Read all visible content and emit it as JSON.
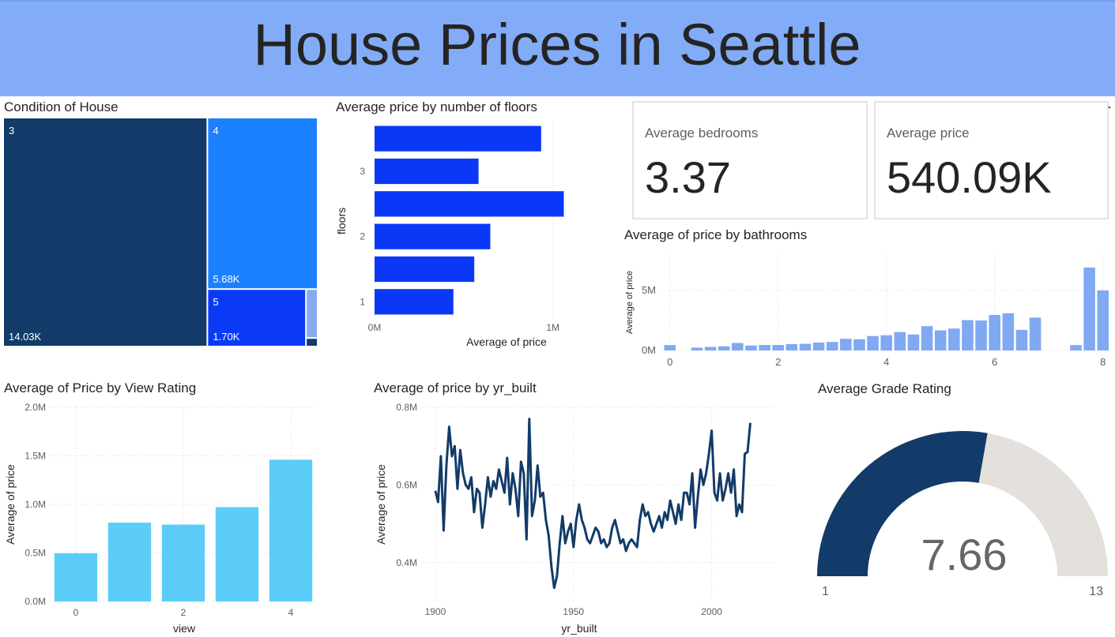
{
  "header": {
    "title": "House Prices in Seattle"
  },
  "cards": [
    {
      "label": "Average bedrooms",
      "value": "3.37"
    },
    {
      "label": "Average price",
      "value": "540.09K"
    }
  ],
  "chart_data": [
    {
      "type": "treemap",
      "title": "Condition of House",
      "categories": [
        "3",
        "4",
        "5",
        null,
        null
      ],
      "values": [
        14031,
        5679,
        1701,
        172,
        30
      ],
      "value_labels": [
        "14.03K",
        "5.68K",
        "1.70K",
        null,
        null
      ],
      "colors": [
        "#123b69",
        "#1b81ff",
        "#0b3af6",
        "#89a9ef",
        "#123b69"
      ]
    },
    {
      "type": "hbar",
      "title": "Average price by number of floors",
      "categories": [
        "1",
        null,
        "2",
        null,
        "3",
        null
      ],
      "values": [
        442000,
        559000,
        649000,
        1061000,
        583000,
        934000
      ],
      "color": "#0b37f7",
      "xlim": [
        0,
        1400000
      ],
      "xticks": [
        {
          "value": 0,
          "label": "0M"
        },
        {
          "value": 1000000,
          "label": "1M"
        }
      ],
      "xlabel": "Average of price",
      "ylabel": "floors",
      "grid": true
    },
    {
      "type": "bar",
      "title": "Average of price by bathrooms",
      "x": [
        0,
        0.5,
        0.75,
        1,
        1.25,
        1.5,
        1.75,
        2,
        2.25,
        2.5,
        2.75,
        3,
        3.25,
        3.5,
        3.75,
        4,
        4.25,
        4.5,
        4.75,
        5,
        5.25,
        5.5,
        5.75,
        6,
        6.25,
        6.5,
        6.75,
        7.5,
        7.75,
        8
      ],
      "values": [
        449000,
        237000,
        294000,
        347000,
        621000,
        409000,
        455000,
        457000,
        533000,
        553000,
        660000,
        708000,
        970000,
        932000,
        1200000,
        1270000,
        1530000,
        1330000,
        2020000,
        1670000,
        1820000,
        2520000,
        2490000,
        2950000,
        3090000,
        1710000,
        2730000,
        450000,
        6890000,
        4990000
      ],
      "color": "#7fa9f2",
      "xlim": [
        -0.2,
        8.15
      ],
      "xticks": [
        0,
        2,
        4,
        6,
        8
      ],
      "ylim": [
        0,
        8000000
      ],
      "yticks": [
        {
          "value": 0,
          "label": "0M"
        },
        {
          "value": 5000000,
          "label": "5M"
        }
      ],
      "ylabel": "Average of price",
      "grid": true
    },
    {
      "type": "bar",
      "title": "Average of Price by View Rating",
      "categories": [
        "0",
        null,
        "2",
        null,
        "4"
      ],
      "values": [
        497000,
        812000,
        792000,
        972000,
        1460000
      ],
      "color": "#5ccdf8",
      "ylim": [
        0,
        2000000
      ],
      "yticks": [
        {
          "value": 0,
          "label": "0.0M"
        },
        {
          "value": 500000,
          "label": "0.5M"
        },
        {
          "value": 1000000,
          "label": "1.0M"
        },
        {
          "value": 1500000,
          "label": "1.5M"
        },
        {
          "value": 2000000,
          "label": "2.0M"
        }
      ],
      "xlabel": "view",
      "ylabel": "Average of price",
      "grid": true
    },
    {
      "type": "line",
      "title": "Average of price by yr_built",
      "x": [
        1900,
        1901,
        1902,
        1903,
        1904,
        1905,
        1906,
        1907,
        1908,
        1909,
        1910,
        1911,
        1912,
        1913,
        1914,
        1915,
        1916,
        1917,
        1918,
        1919,
        1920,
        1921,
        1922,
        1923,
        1924,
        1925,
        1926,
        1927,
        1928,
        1929,
        1930,
        1931,
        1932,
        1933,
        1934,
        1935,
        1936,
        1937,
        1938,
        1939,
        1940,
        1941,
        1942,
        1943,
        1944,
        1945,
        1946,
        1947,
        1948,
        1949,
        1950,
        1951,
        1952,
        1953,
        1954,
        1955,
        1956,
        1957,
        1958,
        1959,
        1960,
        1961,
        1962,
        1963,
        1964,
        1965,
        1966,
        1967,
        1968,
        1969,
        1970,
        1971,
        1972,
        1973,
        1974,
        1975,
        1976,
        1977,
        1978,
        1979,
        1980,
        1981,
        1982,
        1983,
        1984,
        1985,
        1986,
        1987,
        1988,
        1989,
        1990,
        1991,
        1992,
        1993,
        1994,
        1995,
        1996,
        1997,
        1998,
        1999,
        2000,
        2001,
        2002,
        2003,
        2004,
        2005,
        2006,
        2007,
        2008,
        2009,
        2010,
        2011,
        2012,
        2013,
        2014
      ],
      "values": [
        585000,
        556000,
        674000,
        483000,
        650000,
        750000,
        674000,
        700000,
        590000,
        690000,
        630000,
        600000,
        590000,
        620000,
        530000,
        590000,
        580000,
        490000,
        550000,
        620000,
        570000,
        610000,
        590000,
        640000,
        610000,
        580000,
        670000,
        550000,
        630000,
        590000,
        520000,
        660000,
        630000,
        460000,
        770000,
        520000,
        560000,
        650000,
        570000,
        580000,
        510000,
        470000,
        390000,
        335000,
        365000,
        450000,
        520000,
        450000,
        480000,
        500000,
        440000,
        510000,
        550000,
        510000,
        490000,
        460000,
        450000,
        470000,
        490000,
        480000,
        450000,
        460000,
        440000,
        450000,
        490000,
        510000,
        480000,
        450000,
        460000,
        430000,
        450000,
        460000,
        450000,
        440000,
        510000,
        550000,
        520000,
        530000,
        500000,
        480000,
        500000,
        520000,
        490000,
        530000,
        510000,
        560000,
        530000,
        500000,
        550000,
        510000,
        580000,
        580000,
        550000,
        630000,
        490000,
        570000,
        640000,
        600000,
        630000,
        680000,
        740000,
        580000,
        560000,
        630000,
        560000,
        590000,
        630000,
        580000,
        640000,
        520000,
        550000,
        530000,
        680000,
        685000,
        760000
      ],
      "color": "#123b69",
      "xlim": [
        1884,
        2023
      ],
      "xticks": [
        1900,
        1950,
        2000
      ],
      "ylim": [
        300000,
        800000
      ],
      "yticks": [
        {
          "value": 400000,
          "label": "0.4M"
        },
        {
          "value": 600000,
          "label": "0.6M"
        },
        {
          "value": 800000,
          "label": "0.8M"
        }
      ],
      "xlabel": "yr_built",
      "ylabel": "Average of price",
      "grid": true
    },
    {
      "type": "gauge",
      "title": "Average Grade Rating",
      "value": 7.66,
      "min": 1,
      "max": 13,
      "color": "#123b69",
      "track_color": "#e4e0dc"
    }
  ]
}
